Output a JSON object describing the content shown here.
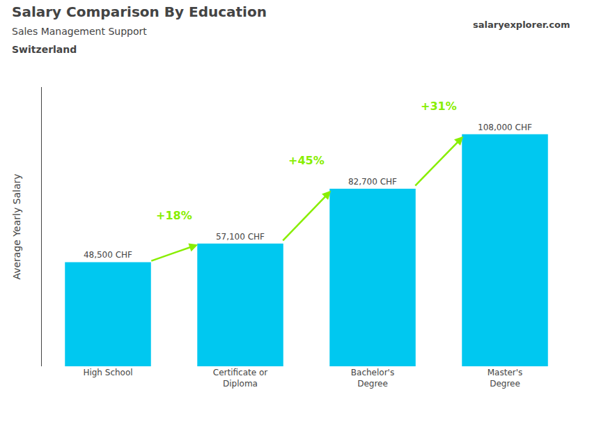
{
  "chart_data": {
    "type": "bar",
    "title": "Salary Comparison By Education",
    "subtitle": "Sales Management Support",
    "country": "Switzerland",
    "source": "salaryexplorer.com",
    "categories": [
      "High School",
      "Certificate or\nDiploma",
      "Bachelor's\nDegree",
      "Master's\nDegree"
    ],
    "values": [
      48500,
      57100,
      82700,
      108000
    ],
    "value_labels": [
      "48,500 CHF",
      "57,100 CHF",
      "82,700 CHF",
      "108,000 CHF"
    ],
    "data_labels": true,
    "color": "#00c8f0",
    "ylabel": "Average Yearly Salary",
    "ylim": [
      0,
      130000
    ],
    "tick_labels": "x",
    "grid": false,
    "annotations": [
      {
        "text": "+18%",
        "color": "#88ee00"
      },
      {
        "text": "+45%",
        "color": "#88ee00"
      },
      {
        "text": "+31%",
        "color": "#88ee00"
      }
    ]
  }
}
